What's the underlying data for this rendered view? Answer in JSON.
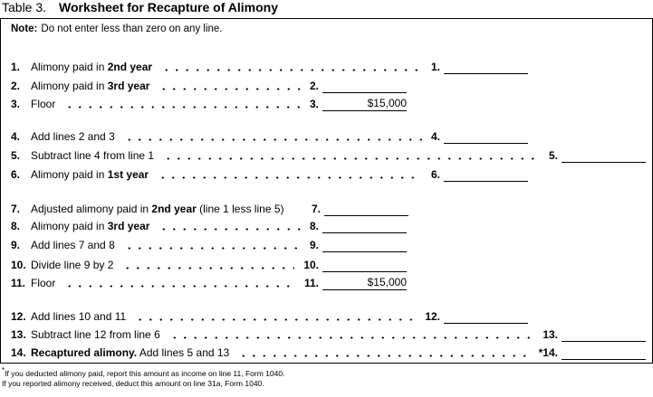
{
  "header": {
    "table_label": "Table 3.",
    "title": "Worksheet for Recapture of Alimony"
  },
  "note": {
    "label": "Note:",
    "text": "Do not enter less than zero on any line."
  },
  "lines": [
    {
      "num": "1.",
      "label": [
        "Alimony paid in ",
        "2nd year"
      ],
      "ref": "1."
    },
    {
      "num": "2.",
      "label": [
        "Alimony paid in ",
        "3rd year"
      ],
      "ref": "2."
    },
    {
      "num": "3.",
      "label": [
        "Floor"
      ],
      "ref": "3.",
      "value": "$15,000"
    },
    {
      "num": "4.",
      "label": [
        "Add lines 2 and 3"
      ],
      "ref": "4."
    },
    {
      "num": "5.",
      "label": [
        "Subtract line 4 from line 1"
      ],
      "ref": "5."
    },
    {
      "num": "6.",
      "label": [
        "Alimony paid in ",
        "1st year"
      ],
      "ref": "6."
    },
    {
      "num": "7.",
      "label": [
        "Adjusted alimony paid in ",
        "2nd year",
        " (line 1 less line 5)"
      ],
      "ref": "7."
    },
    {
      "num": "8.",
      "label": [
        "Alimony paid in ",
        "3rd year"
      ],
      "ref": "8."
    },
    {
      "num": "9.",
      "label": [
        "Add lines 7 and 8"
      ],
      "ref": "9."
    },
    {
      "num": "10.",
      "label": [
        "Divide line 9 by 2"
      ],
      "ref": "10."
    },
    {
      "num": "11.",
      "label": [
        "Floor"
      ],
      "ref": "11.",
      "value": "$15,000"
    },
    {
      "num": "12.",
      "label": [
        "Add lines 10 and 11"
      ],
      "ref": "12."
    },
    {
      "num": "13.",
      "label": [
        "Subtract line 12 from line 6"
      ],
      "ref": "13."
    },
    {
      "num": "14.",
      "label": [
        "Recaptured alimony.",
        " Add lines 5 and 13"
      ],
      "ref": "*14."
    }
  ],
  "footnote": {
    "marker": "*",
    "lines": [
      "If you deducted alimony paid, report this amount as income on line 11, Form 1040.",
      "If you reported alimony received, deduct this amount on line 31a, Form 1040."
    ]
  }
}
